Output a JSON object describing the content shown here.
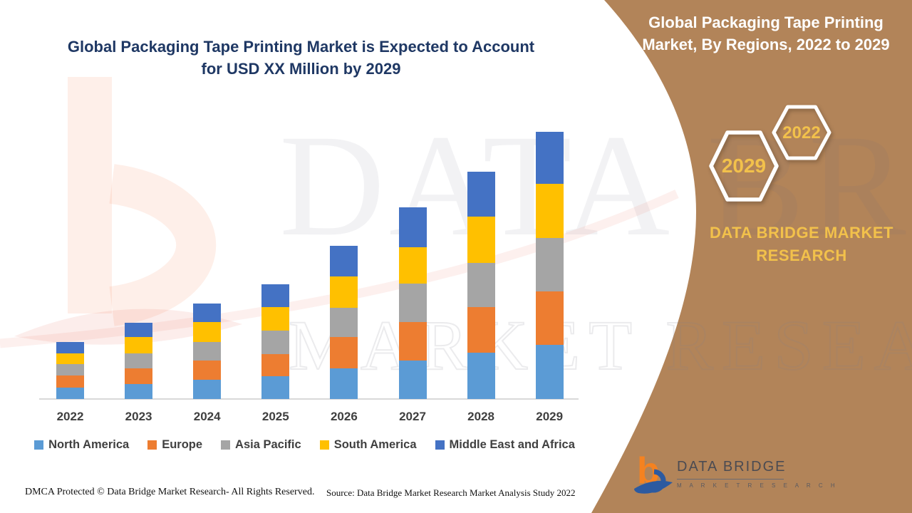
{
  "header": {
    "title_lines": [
      "Global Packaging Tape Printing Market is Expected to Account",
      "for USD XX Million by 2029"
    ],
    "title_color": "#1F3864"
  },
  "side_panel": {
    "bg": "#B28459",
    "title_lines": [
      "Global Packaging Tape Printing",
      "Market, By Regions, 2022 to 2029"
    ],
    "badges": [
      {
        "label": "2029"
      },
      {
        "label": "2022"
      }
    ],
    "brand_lines": [
      "DATA BRIDGE MARKET",
      "RESEARCH"
    ],
    "accent_gold": "#F2C14B"
  },
  "watermarks": {
    "big_text": "DATA BRIDGE",
    "outline_text": "MARKET RESEARCH"
  },
  "chart_data": {
    "type": "bar",
    "stacked": true,
    "title": "Global Packaging Tape Printing Market is Expected to Account for USD XX Million by 2029",
    "categories": [
      "2022",
      "2023",
      "2024",
      "2025",
      "2026",
      "2027",
      "2028",
      "2029"
    ],
    "series": [
      {
        "name": "North America",
        "color": "#5B9BD5",
        "values": [
          16,
          21,
          27,
          32,
          43,
          54,
          65,
          76
        ]
      },
      {
        "name": "Europe",
        "color": "#ED7D31",
        "values": [
          17,
          22,
          27,
          31,
          44,
          54,
          64,
          75
        ]
      },
      {
        "name": "Asia Pacific",
        "color": "#A5A5A5",
        "values": [
          16,
          21,
          26,
          33,
          41,
          54,
          62,
          75
        ]
      },
      {
        "name": "South America",
        "color": "#FFC000",
        "values": [
          15,
          23,
          28,
          33,
          44,
          51,
          65,
          76
        ]
      },
      {
        "name": "Middle East and Africa",
        "color": "#4472C4",
        "values": [
          16,
          20,
          26,
          32,
          43,
          56,
          63,
          73
        ]
      }
    ],
    "units": "relative (axis values not shown, stated as USD XX Million)",
    "xlabel": "",
    "ylabel": "",
    "grid": false,
    "legend_position": "bottom"
  },
  "footer": {
    "left": "DMCA Protected © Data Bridge Market Research- All Rights Reserved.",
    "right": "Source: Data Bridge Market Research Market Analysis Study 2022"
  },
  "logo": {
    "name": "DATA BRIDGE",
    "subtitle": "M A R K E T   R E S E A R C H"
  }
}
